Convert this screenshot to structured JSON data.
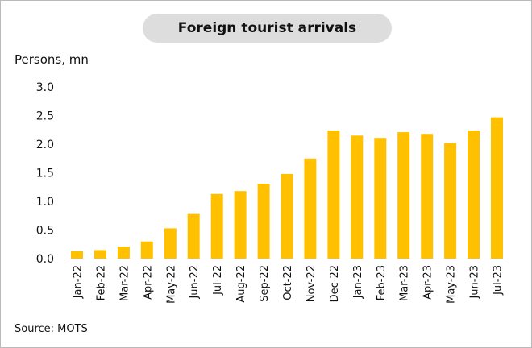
{
  "chart_data": {
    "type": "bar",
    "title": "Foreign tourist arrivals",
    "ylabel": "Persons, mn",
    "xlabel": "",
    "categories": [
      "Jan-22",
      "Feb-22",
      "Mar-22",
      "Apr-22",
      "May-22",
      "Jun-22",
      "Jul-22",
      "Aug-22",
      "Sep-22",
      "Oct-22",
      "Nov-22",
      "Dec-22",
      "Jan-23",
      "Feb-23",
      "Mar-23",
      "Apr-23",
      "May-23",
      "Jun-23",
      "Jul-23"
    ],
    "values": [
      0.13,
      0.15,
      0.21,
      0.3,
      0.53,
      0.78,
      1.13,
      1.18,
      1.31,
      1.48,
      1.75,
      2.24,
      2.15,
      2.11,
      2.21,
      2.18,
      2.02,
      2.24,
      2.47
    ],
    "ylim": [
      0,
      3.0
    ],
    "yticks": [
      "0.0",
      "0.5",
      "1.0",
      "1.5",
      "2.0",
      "2.5",
      "3.0"
    ],
    "grid": false,
    "bar_color": "#FFC000",
    "source": "Source: MOTS"
  }
}
